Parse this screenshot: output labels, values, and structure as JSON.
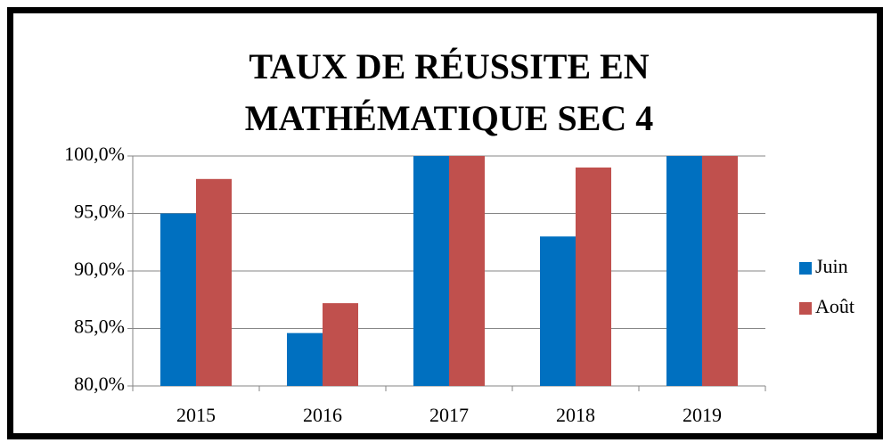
{
  "chart_data": {
    "type": "bar",
    "title": "TAUX DE RÉUSSITE EN MATHÉMATIQUE SEC 4",
    "categories": [
      "2015",
      "2016",
      "2017",
      "2018",
      "2019"
    ],
    "series": [
      {
        "name": "Juin",
        "color": "#0070c0",
        "values": [
          95,
          84.6,
          100,
          93,
          100
        ]
      },
      {
        "name": "Août",
        "color": "#c0504d",
        "values": [
          98,
          87.2,
          100,
          99,
          100
        ]
      }
    ],
    "ylim": [
      80,
      100
    ],
    "yticks": [
      {
        "value": 80,
        "label": "80,0%"
      },
      {
        "value": 85,
        "label": "85,0%"
      },
      {
        "value": 90,
        "label": "90,0%"
      },
      {
        "value": 95,
        "label": "95,0%"
      },
      {
        "value": 100,
        "label": "100,0%"
      }
    ],
    "grid": true,
    "legend": "right"
  }
}
